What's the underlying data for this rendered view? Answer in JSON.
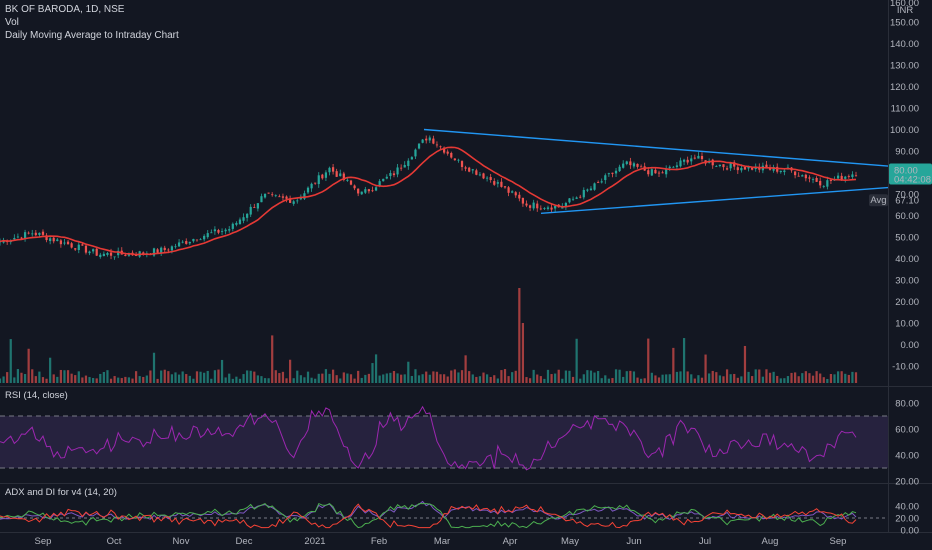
{
  "header": {
    "symbol_line": "BK OF BARODA, 1D, NSE",
    "volume_line": "Vol",
    "indicator_line": "Daily Moving Average to Intraday Chart"
  },
  "price_axis": {
    "currency": "INR",
    "top_partial": "160.00",
    "ticks": [
      150,
      140,
      130,
      120,
      110,
      100,
      90,
      80,
      70,
      60,
      50,
      40,
      30,
      20,
      10,
      0,
      -10
    ],
    "current_price_label": "80.00",
    "countdown_label": "04:42:08",
    "avg_tag": "Avg",
    "avg_value": "67.10"
  },
  "rsi": {
    "title": "RSI (14, close)",
    "ticks": [
      80,
      60,
      40,
      20
    ],
    "upper_band": 70,
    "lower_band": 30
  },
  "adx": {
    "title": "ADX and DI for v4 (14, 20)",
    "ticks": [
      40,
      20,
      0
    ],
    "key_level": 20
  },
  "x_axis": {
    "labels": [
      "Sep",
      "Oct",
      "Nov",
      "Dec",
      "2021",
      "Feb",
      "Mar",
      "Apr",
      "May",
      "Jun",
      "Jul",
      "Aug",
      "Sep"
    ]
  },
  "colors": {
    "background": "#131722",
    "up": "#26a69a",
    "down": "#ef5350",
    "ma": "#e53935",
    "trendline": "#2196f3",
    "rsi": "#9c27b0",
    "adx_plus": "#4caf50",
    "adx_minus": "#f44336",
    "adx_line": "#7e57c2"
  },
  "chart_data": {
    "type": "candlestick",
    "symbol": "BK OF BARODA",
    "interval": "1D",
    "exchange": "NSE",
    "price_keypoints": [
      {
        "month": "Aug 2020",
        "close": 48
      },
      {
        "month": "late Aug 2020",
        "close": 52
      },
      {
        "month": "Sep 2020",
        "close": 47
      },
      {
        "month": "early Oct 2020",
        "close": 42
      },
      {
        "month": "Oct 2020",
        "close": 42
      },
      {
        "month": "Nov 2020",
        "close": 44
      },
      {
        "month": "late Nov 2020",
        "close": 50
      },
      {
        "month": "Dec 2020",
        "close": 54
      },
      {
        "month": "mid Dec 2020",
        "close": 69
      },
      {
        "month": "2021",
        "close": 67
      },
      {
        "month": "mid Jan 2021",
        "close": 82
      },
      {
        "month": "late Jan 2021",
        "close": 70
      },
      {
        "month": "Feb 2021",
        "close": 80
      },
      {
        "month": "mid Feb 2021",
        "close": 97
      },
      {
        "month": "Mar 2021",
        "close": 84
      },
      {
        "month": "mid Mar 2021",
        "close": 76
      },
      {
        "month": "Apr 2021",
        "close": 65
      },
      {
        "month": "mid Apr 2021",
        "close": 64
      },
      {
        "month": "May 2021",
        "close": 73
      },
      {
        "month": "Jun 2021",
        "close": 84
      },
      {
        "month": "mid Jun 2021",
        "close": 79
      },
      {
        "month": "Jul 2021",
        "close": 87
      },
      {
        "month": "mid Jul 2021",
        "close": 83
      },
      {
        "month": "Aug 2021",
        "close": 82
      },
      {
        "month": "mid Aug 2021",
        "close": 81
      },
      {
        "month": "late Aug 2021",
        "close": 75
      },
      {
        "month": "Sep 2021",
        "close": 80
      }
    ],
    "trendline_upper": {
      "from_price": 100,
      "to_price": 83
    },
    "trendline_lower": {
      "from_price": 61,
      "to_price": 73
    },
    "ylim": [
      -15,
      160
    ]
  }
}
